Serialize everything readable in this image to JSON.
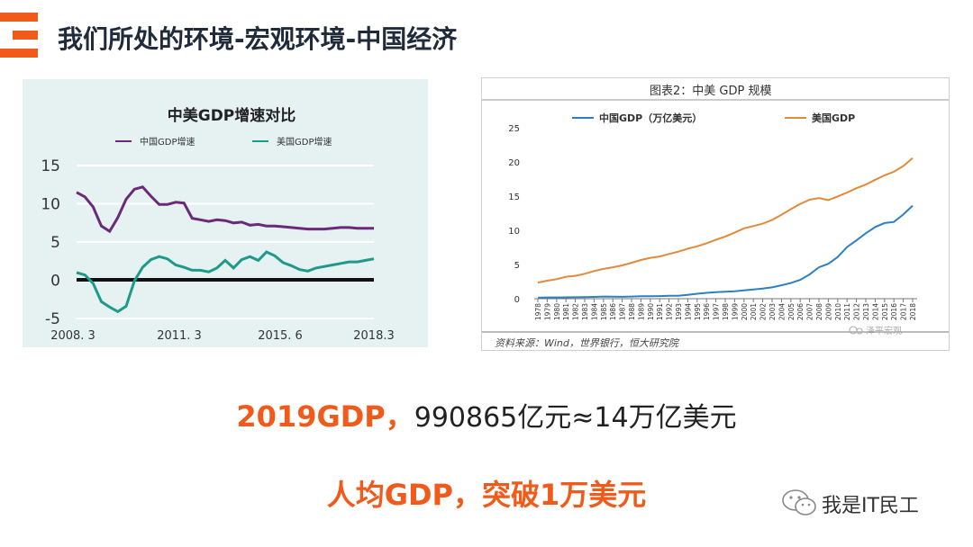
{
  "slide": {
    "title": "我们所处的环境-宏观环境-中国经济",
    "headline_highlight": "2019GDP，",
    "headline_rest": "990865亿元≈14万亿美元",
    "subline": "人均GDP，突破1万美元",
    "watermark": "我是IT民工"
  },
  "colors": {
    "accent": "#f05a1a",
    "china": "#6a2a7a",
    "usa": "#1f9a8a",
    "china_gdp": "#2f7fc1",
    "usa_gdp": "#e08a3a"
  },
  "chart_data": [
    {
      "type": "line",
      "title": "中美GDP增速对比",
      "legend": "top",
      "ylim": [
        -5,
        15
      ],
      "yticks": [
        "15",
        "10",
        "5",
        "0",
        "-5"
      ],
      "xticks": [
        "2008. 3",
        "2011. 3",
        "2015. 6",
        "2018.3"
      ],
      "series": [
        {
          "name": "中国GDP增速",
          "values": [
            11.5,
            10.9,
            9.6,
            7.1,
            6.4,
            8.2,
            10.6,
            11.9,
            12.2,
            11.0,
            9.9,
            9.9,
            10.2,
            10.1,
            8.1,
            7.9,
            7.7,
            7.9,
            7.8,
            7.5,
            7.6,
            7.2,
            7.3,
            7.1,
            7.1,
            7.0,
            6.9,
            6.8,
            6.7,
            6.7,
            6.7,
            6.8,
            6.9,
            6.9,
            6.8,
            6.8,
            6.8
          ]
        },
        {
          "name": "美国GDP增速",
          "values": [
            1.0,
            0.7,
            -0.4,
            -2.8,
            -3.5,
            -4.1,
            -3.4,
            -0.1,
            1.7,
            2.7,
            3.1,
            2.8,
            2.0,
            1.7,
            1.3,
            1.3,
            1.1,
            1.6,
            2.6,
            1.6,
            2.7,
            3.1,
            2.6,
            3.7,
            3.2,
            2.3,
            1.9,
            1.4,
            1.2,
            1.6,
            1.8,
            2.0,
            2.2,
            2.4,
            2.4,
            2.6,
            2.8
          ]
        }
      ]
    },
    {
      "type": "line",
      "title": "图表2：中美 GDP 规模",
      "legend": "top",
      "ylim": [
        0,
        25
      ],
      "yticks": [
        "0",
        "5",
        "10",
        "15",
        "20",
        "25"
      ],
      "x": [
        "1978",
        "1979",
        "1980",
        "1981",
        "1982",
        "1983",
        "1984",
        "1985",
        "1986",
        "1987",
        "1988",
        "1989",
        "1990",
        "1991",
        "1992",
        "1993",
        "1994",
        "1995",
        "1996",
        "1997",
        "1998",
        "1999",
        "2000",
        "2001",
        "2002",
        "2003",
        "2004",
        "2005",
        "2006",
        "2007",
        "2008",
        "2009",
        "2010",
        "2011",
        "2012",
        "2013",
        "2014",
        "2015",
        "2016",
        "2017",
        "2018"
      ],
      "source": "资料来源：Wind，世界银行，恒大研究院",
      "watermark": "泽平宏观",
      "series": [
        {
          "name": "中国GDP（万亿美元）",
          "values": [
            0.15,
            0.18,
            0.19,
            0.2,
            0.21,
            0.23,
            0.26,
            0.31,
            0.3,
            0.27,
            0.31,
            0.35,
            0.36,
            0.38,
            0.43,
            0.44,
            0.56,
            0.73,
            0.86,
            0.96,
            1.03,
            1.09,
            1.21,
            1.34,
            1.47,
            1.66,
            1.96,
            2.29,
            2.75,
            3.55,
            4.59,
            5.1,
            6.09,
            7.55,
            8.53,
            9.57,
            10.48,
            11.06,
            11.23,
            12.31,
            13.61
          ]
        },
        {
          "name": "美国GDP",
          "values": [
            2.35,
            2.63,
            2.86,
            3.21,
            3.34,
            3.64,
            4.04,
            4.35,
            4.59,
            4.87,
            5.25,
            5.66,
            5.98,
            6.17,
            6.54,
            6.88,
            7.31,
            7.66,
            8.1,
            8.61,
            9.09,
            9.66,
            10.29,
            10.62,
            10.98,
            11.51,
            12.27,
            13.09,
            13.86,
            14.48,
            14.72,
            14.42,
            14.96,
            15.52,
            16.16,
            16.69,
            17.39,
            18.04,
            18.57,
            19.39,
            20.58
          ]
        }
      ]
    }
  ]
}
